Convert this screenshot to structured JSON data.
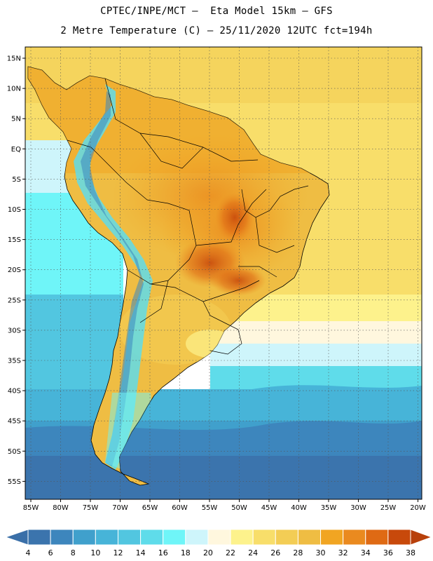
{
  "header": {
    "line1": "CPTEC/INPE/MCT –  Eta Model 15km – GFS",
    "line2": "2 Metre Temperature (C) – 25/11/2020 12UTC fct=194h"
  },
  "map": {
    "lat_labels": [
      "15N",
      "10N",
      "5N",
      "EQ",
      "5S",
      "10S",
      "15S",
      "20S",
      "25S",
      "30S",
      "35S",
      "40S",
      "45S",
      "50S",
      "55S"
    ],
    "lon_labels": [
      "85W",
      "80W",
      "75W",
      "70W",
      "65W",
      "60W",
      "55W",
      "50W",
      "45W",
      "40W",
      "35W",
      "30W",
      "25W",
      "20W"
    ]
  },
  "colorbar": {
    "labels": [
      "4",
      "6",
      "8",
      "10",
      "12",
      "14",
      "16",
      "18",
      "20",
      "22",
      "24",
      "26",
      "28",
      "30",
      "32",
      "34",
      "36",
      "38"
    ],
    "colors": {
      "below": "#3a6fa8",
      "bins": [
        "#3b74ad",
        "#3d86bd",
        "#40a0cc",
        "#47b4d8",
        "#52c6e0",
        "#5fdcea",
        "#6ff5f8",
        "#cef5fb",
        "#fff7de",
        "#fdf28c",
        "#f8de6a",
        "#f3cd55",
        "#efbd43",
        "#f1a522",
        "#ea8a1f",
        "#df6a14",
        "#c8490b"
      ],
      "above": "#b8400b"
    }
  }
}
